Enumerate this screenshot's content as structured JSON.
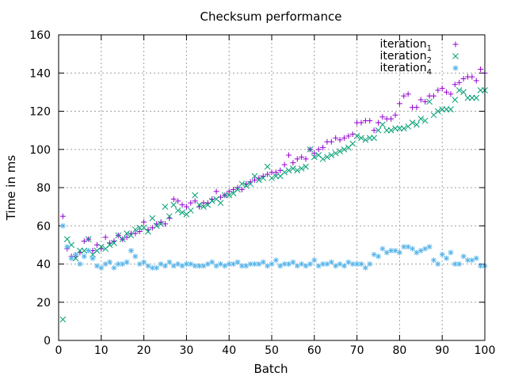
{
  "chart_data": {
    "type": "scatter",
    "title": "Checksum performance",
    "xlabel": "Batch",
    "ylabel": "Time in ms",
    "xlim": [
      0,
      100
    ],
    "ylim": [
      0,
      160
    ],
    "xticks": [
      0,
      10,
      20,
      30,
      40,
      50,
      60,
      70,
      80,
      90,
      100
    ],
    "yticks": [
      0,
      20,
      40,
      60,
      80,
      100,
      120,
      140,
      160
    ],
    "grid": true,
    "legend_position": "top-right",
    "series": [
      {
        "name": "iteration",
        "subscript": "1",
        "marker": "plus",
        "color": "#9400d3",
        "x": [
          1,
          2,
          3,
          4,
          5,
          6,
          7,
          8,
          9,
          10,
          11,
          12,
          13,
          14,
          15,
          16,
          17,
          18,
          19,
          20,
          21,
          22,
          23,
          24,
          25,
          26,
          27,
          28,
          29,
          30,
          31,
          32,
          33,
          34,
          35,
          36,
          37,
          38,
          39,
          40,
          41,
          42,
          43,
          44,
          45,
          46,
          47,
          48,
          49,
          50,
          51,
          52,
          53,
          54,
          55,
          56,
          57,
          58,
          59,
          60,
          61,
          62,
          63,
          64,
          65,
          66,
          67,
          68,
          69,
          70,
          71,
          72,
          73,
          74,
          75,
          76,
          77,
          78,
          79,
          80,
          81,
          82,
          83,
          84,
          85,
          86,
          87,
          88,
          89,
          90,
          91,
          92,
          93,
          94,
          95,
          96,
          97,
          98,
          99,
          100
        ],
        "y": [
          65,
          48,
          44,
          44,
          46,
          52,
          53,
          47,
          50,
          48,
          54,
          51,
          52,
          55,
          53,
          54,
          56,
          56,
          57,
          62,
          58,
          59,
          61,
          62,
          61,
          64,
          74,
          73,
          71,
          70,
          72,
          73,
          70,
          72,
          72,
          74,
          78,
          75,
          76,
          78,
          79,
          80,
          79,
          82,
          83,
          84,
          85,
          86,
          87,
          88,
          88,
          89,
          92,
          97,
          93,
          95,
          96,
          95,
          100,
          98,
          100,
          101,
          104,
          104,
          106,
          105,
          106,
          107,
          108,
          114,
          114,
          115,
          115,
          110,
          114,
          117,
          116,
          116,
          118,
          124,
          128,
          129,
          122,
          122,
          126,
          125,
          128,
          128,
          131,
          132,
          130,
          129,
          134,
          135,
          137,
          138,
          138,
          136,
          142,
          140
        ]
      },
      {
        "name": "iteration",
        "subscript": "2",
        "marker": "cross",
        "color": "#009e73",
        "x": [
          1,
          2,
          3,
          4,
          5,
          6,
          7,
          8,
          9,
          10,
          11,
          12,
          13,
          14,
          15,
          16,
          17,
          18,
          19,
          20,
          21,
          22,
          23,
          24,
          25,
          26,
          27,
          28,
          29,
          30,
          31,
          32,
          33,
          34,
          35,
          36,
          37,
          38,
          39,
          40,
          41,
          42,
          43,
          44,
          45,
          46,
          47,
          48,
          49,
          50,
          51,
          52,
          53,
          54,
          55,
          56,
          57,
          58,
          59,
          60,
          61,
          62,
          63,
          64,
          65,
          66,
          67,
          68,
          69,
          70,
          71,
          72,
          73,
          74,
          75,
          76,
          77,
          78,
          79,
          80,
          81,
          82,
          83,
          84,
          85,
          86,
          87,
          88,
          89,
          90,
          91,
          92,
          93,
          94,
          95,
          96,
          97,
          98,
          99,
          100
        ],
        "y": [
          11,
          53,
          50,
          43,
          47,
          47,
          53,
          45,
          47,
          49,
          48,
          50,
          51,
          55,
          53,
          56,
          55,
          58,
          59,
          59,
          57,
          64,
          60,
          61,
          70,
          65,
          71,
          68,
          67,
          66,
          68,
          76,
          71,
          70,
          71,
          73,
          74,
          72,
          76,
          76,
          77,
          79,
          82,
          81,
          82,
          86,
          84,
          85,
          91,
          85,
          86,
          86,
          88,
          89,
          90,
          89,
          90,
          91,
          100,
          96,
          97,
          95,
          96,
          97,
          98,
          99,
          100,
          101,
          103,
          107,
          106,
          105,
          106,
          106,
          110,
          113,
          110,
          110,
          111,
          111,
          111,
          112,
          114,
          113,
          116,
          115,
          125,
          118,
          120,
          121,
          121,
          121,
          126,
          131,
          130,
          127,
          127,
          127,
          131,
          131
        ]
      },
      {
        "name": "iteration",
        "subscript": "4",
        "marker": "star",
        "color": "#56b4e9",
        "x": [
          1,
          2,
          3,
          4,
          5,
          6,
          7,
          8,
          9,
          10,
          11,
          12,
          13,
          14,
          15,
          16,
          17,
          18,
          19,
          20,
          21,
          22,
          23,
          24,
          25,
          26,
          27,
          28,
          29,
          30,
          31,
          32,
          33,
          34,
          35,
          36,
          37,
          38,
          39,
          40,
          41,
          42,
          43,
          44,
          45,
          46,
          47,
          48,
          49,
          50,
          51,
          52,
          53,
          54,
          55,
          56,
          57,
          58,
          59,
          60,
          61,
          62,
          63,
          64,
          65,
          66,
          67,
          68,
          69,
          70,
          71,
          72,
          73,
          74,
          75,
          76,
          77,
          78,
          79,
          80,
          81,
          82,
          83,
          84,
          85,
          86,
          87,
          88,
          89,
          90,
          91,
          92,
          93,
          94,
          95,
          96,
          97,
          98,
          99,
          100
        ],
        "y": [
          60,
          49,
          43,
          45,
          40,
          44,
          47,
          43,
          39,
          38,
          40,
          41,
          38,
          40,
          40,
          41,
          47,
          44,
          40,
          41,
          39,
          38,
          38,
          40,
          39,
          41,
          39,
          40,
          39,
          40,
          40,
          39,
          39,
          39,
          40,
          41,
          39,
          40,
          39,
          40,
          40,
          41,
          39,
          39,
          40,
          40,
          40,
          41,
          39,
          40,
          42,
          39,
          40,
          40,
          41,
          39,
          40,
          39,
          40,
          42,
          39,
          40,
          40,
          41,
          39,
          40,
          39,
          41,
          40,
          40,
          40,
          38,
          40,
          45,
          44,
          48,
          46,
          47,
          47,
          46,
          49,
          49,
          48,
          46,
          47,
          48,
          49,
          42,
          40,
          45,
          43,
          46,
          40,
          40,
          44,
          42,
          42,
          43,
          39,
          39
        ]
      }
    ]
  }
}
